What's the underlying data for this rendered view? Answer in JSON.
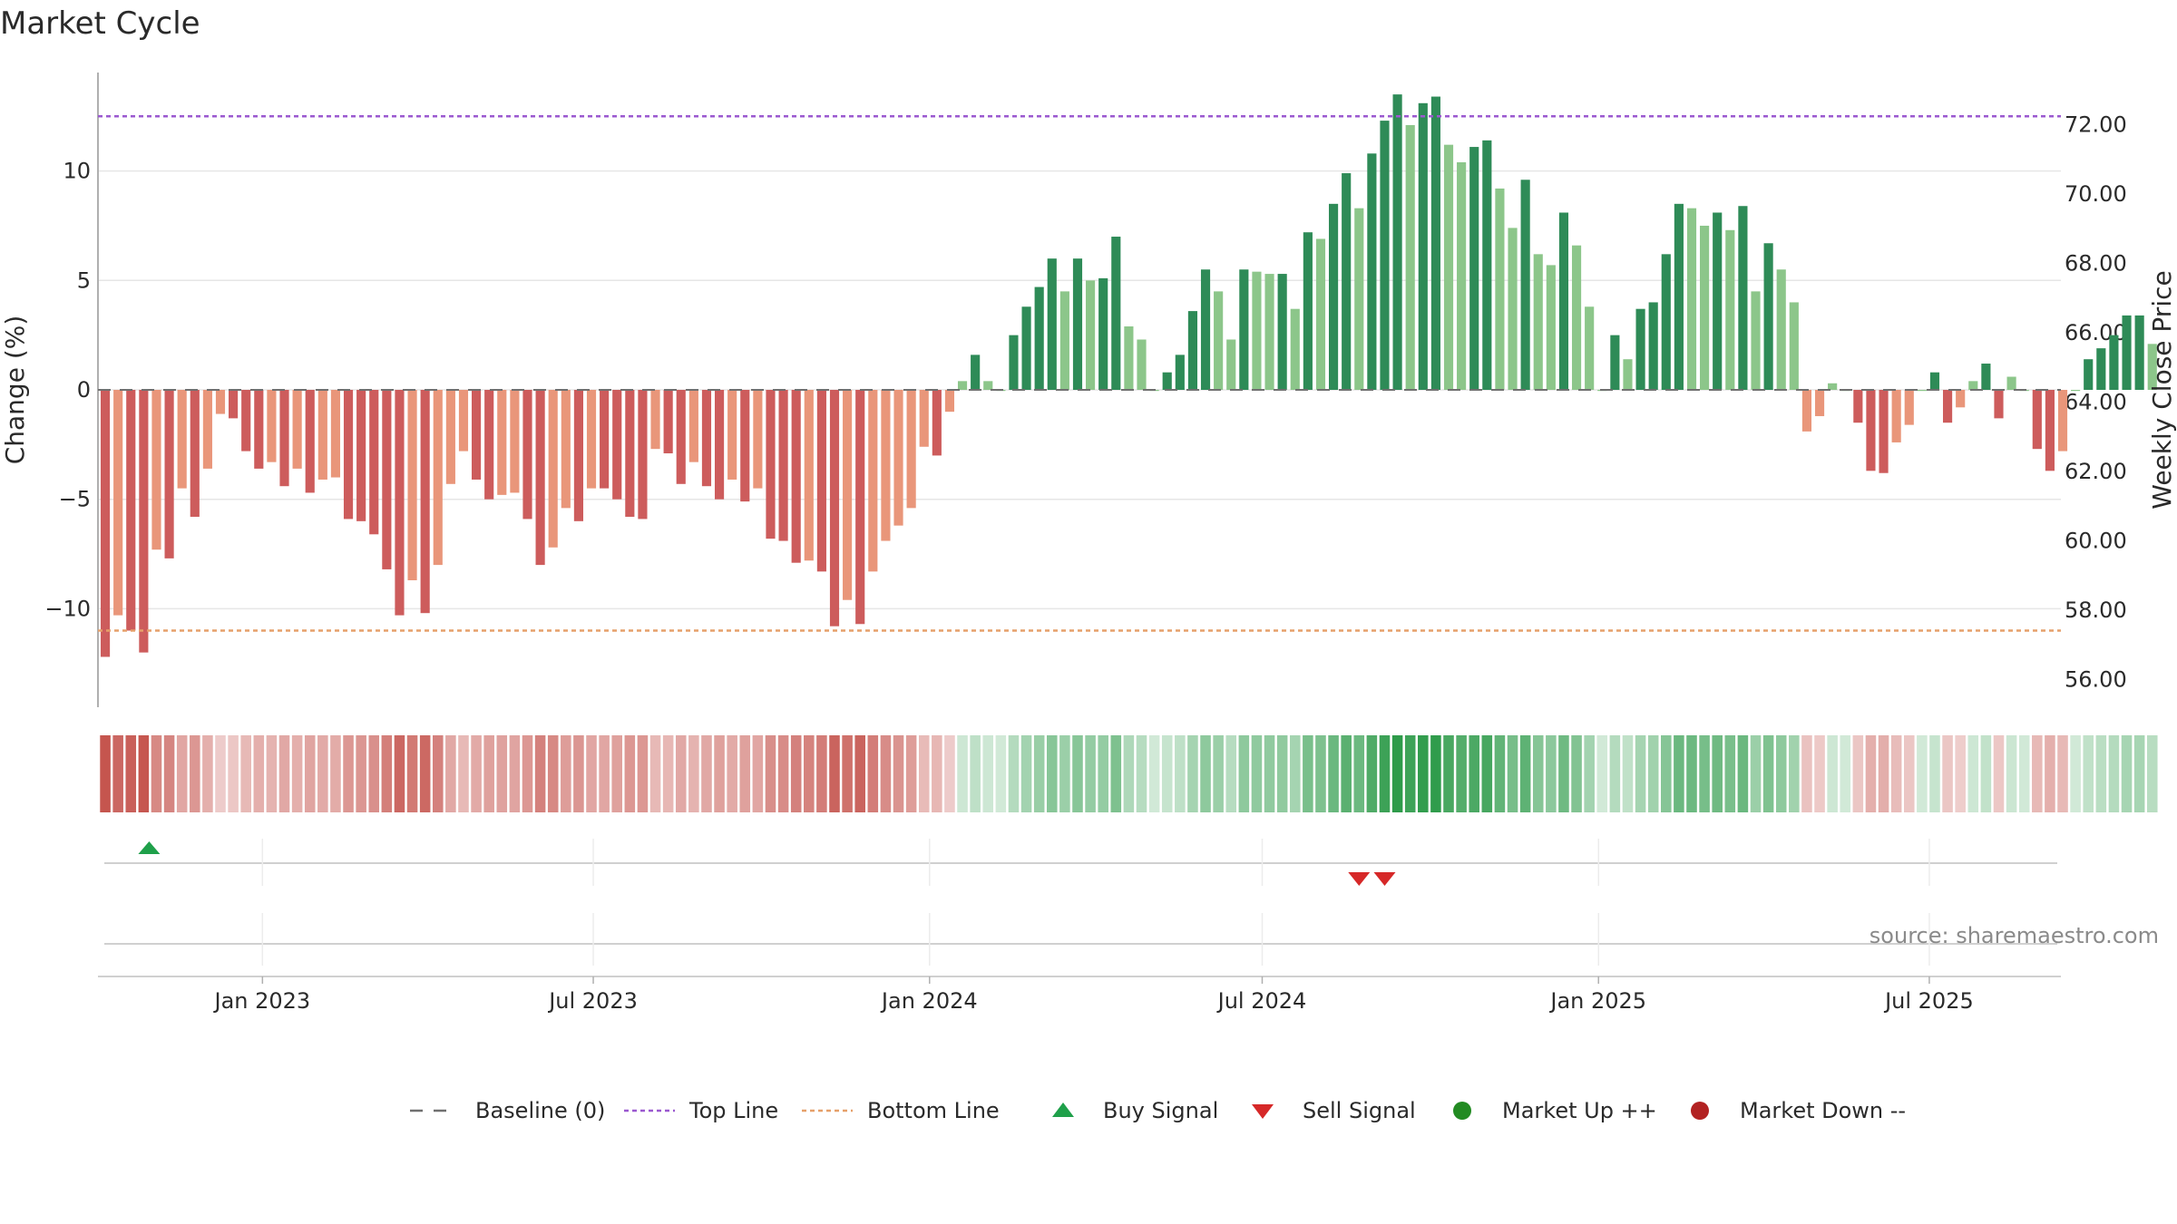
{
  "chart_data": {
    "type": "bar",
    "title": "Market Cycle",
    "ylabel": "Change (%)",
    "y2label": "Weekly Close Price",
    "ylim": [
      -14.5,
      14.5
    ],
    "y2lim": [
      55.2,
      73.5
    ],
    "yticks": [
      10,
      5,
      0,
      -5,
      -10
    ],
    "ytick_labels": [
      "10",
      "5",
      "0",
      "−5",
      "−10"
    ],
    "y2ticks": [
      72,
      70,
      68,
      66,
      64,
      62,
      60,
      58,
      56
    ],
    "y2tick_labels": [
      "72.00",
      "70.00",
      "68.00",
      "66.00",
      "64.00",
      "62.00",
      "60.00",
      "58.00",
      "56.00"
    ],
    "x_range": [
      "2022-10-03",
      "2025-09-11"
    ],
    "xticks": [
      "2023-01-01",
      "2023-07-01",
      "2024-01-01",
      "2024-07-01",
      "2025-01-01",
      "2025-07-01"
    ],
    "xtick_labels": [
      "Jan 2023",
      "Jul 2023",
      "Jan 2024",
      "Jul 2024",
      "Jan 2025",
      "Jul 2025"
    ],
    "top_line": 12.5,
    "bottom_line": -11.0,
    "start_week": "2022-10-07",
    "values": [
      -12.2,
      -10.3,
      -11.0,
      -12.0,
      -7.3,
      -7.7,
      -4.5,
      -5.8,
      -3.6,
      -1.1,
      -1.3,
      -2.8,
      -3.6,
      -3.3,
      -4.4,
      -3.6,
      -4.7,
      -4.1,
      -4.0,
      -5.9,
      -6.0,
      -6.6,
      -8.2,
      -10.3,
      -8.7,
      -10.2,
      -8.0,
      -4.3,
      -2.8,
      -4.1,
      -5.0,
      -4.8,
      -4.7,
      -5.9,
      -8.0,
      -7.2,
      -5.4,
      -6.0,
      -4.5,
      -4.5,
      -5.0,
      -5.8,
      -5.9,
      -2.7,
      -2.9,
      -4.3,
      -3.3,
      -4.4,
      -5.0,
      -4.1,
      -5.1,
      -4.5,
      -6.8,
      -6.9,
      -7.9,
      -7.8,
      -8.3,
      -10.8,
      -9.6,
      -10.7,
      -8.3,
      -6.9,
      -6.2,
      -5.4,
      -2.6,
      -3.0,
      -1.0,
      0.4,
      1.6,
      0.4,
      0.0,
      2.5,
      3.8,
      4.7,
      6.0,
      4.5,
      6.0,
      5.0,
      5.1,
      7.0,
      2.9,
      2.3,
      0.0,
      0.8,
      1.6,
      3.6,
      5.5,
      4.5,
      2.3,
      5.5,
      5.4,
      5.3,
      5.3,
      3.7,
      7.2,
      6.9,
      8.5,
      9.9,
      8.3,
      10.8,
      12.3,
      13.5,
      12.1,
      13.1,
      13.4,
      11.2,
      10.4,
      11.1,
      11.4,
      9.2,
      7.4,
      9.6,
      6.2,
      5.7,
      8.1,
      6.6,
      3.8,
      0.0,
      2.5,
      1.4,
      3.7,
      4.0,
      6.2,
      8.5,
      8.3,
      7.5,
      8.1,
      7.3,
      8.4,
      4.5,
      6.7,
      5.5,
      4.0,
      -1.9,
      -1.2,
      0.3,
      0.0,
      -1.5,
      -3.7,
      -3.8,
      -2.4,
      -1.6,
      0.0,
      0.8,
      -1.5,
      -0.8,
      0.4,
      1.2,
      -1.3,
      0.6,
      0.0,
      -2.7,
      -3.7,
      -2.8,
      0.0,
      1.4,
      1.9,
      2.5,
      3.4,
      3.4,
      2.1
    ],
    "series": [
      {
        "name": "Baseline (0)",
        "style": "dashed",
        "color": "#707070"
      },
      {
        "name": "Top Line",
        "style": "dotted",
        "color": "#9b59d0"
      },
      {
        "name": "Bottom Line",
        "style": "dotted",
        "color": "#e6a06a"
      },
      {
        "name": "Buy Signal",
        "marker": "triangle-up",
        "color": "#1fa04a"
      },
      {
        "name": "Sell Signal",
        "marker": "triangle-down",
        "color": "#d62828"
      },
      {
        "name": "Market Up ++",
        "marker": "circle",
        "color": "#228b22"
      },
      {
        "name": "Market Down --",
        "marker": "circle",
        "color": "#b22222"
      }
    ],
    "buy_signals": [
      "2022-10-31"
    ],
    "sell_signals": [
      "2024-08-23",
      "2024-09-06"
    ],
    "colors": {
      "pos_strong": "#2e8b57",
      "pos_light": "#8cc68a",
      "neg_strong": "#cd5c5c",
      "neg_light": "#e9967a",
      "heat_pos": "#2e9b4a",
      "heat_neg": "#c0463f"
    }
  },
  "source": "source: sharemaestro.com"
}
